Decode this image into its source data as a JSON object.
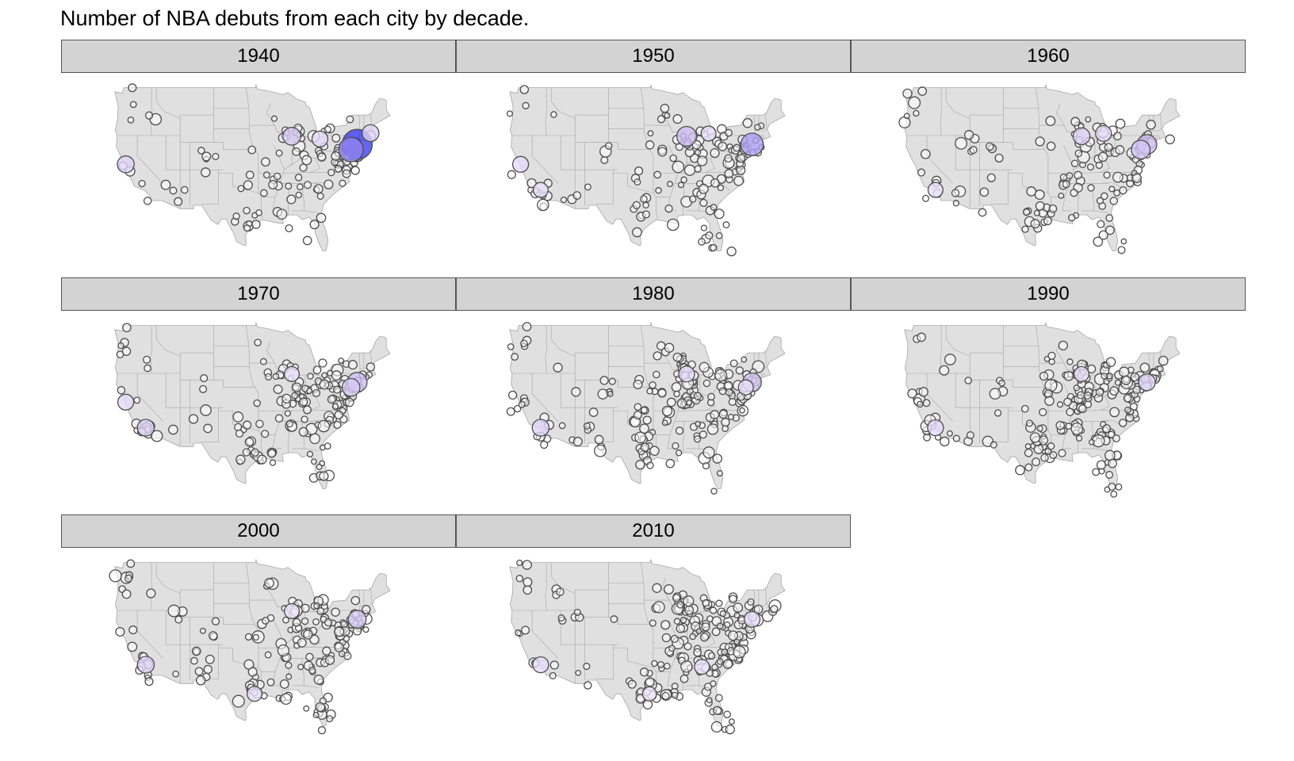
{
  "title": "Number of NBA debuts from each city by decade.",
  "colors": {
    "strip_fill": "#d3d3d3",
    "land_fill": "#e0e0e0",
    "state_border": "#a6a6a6",
    "marker_stroke": "#4d4d4d",
    "marker_fill_low": "#ffffff",
    "marker_fill_mid": "#c9b6f2",
    "marker_fill_high": "#3f3ff0"
  },
  "marker_fill_scale": "white (few debuts) to purple to blue (many debuts)",
  "panels": [
    {
      "label": "1940",
      "hotspots": [
        {
          "lon": -73.9,
          "lat": 40.7,
          "level": 1.0
        },
        {
          "lon": -75.2,
          "lat": 39.95,
          "level": 0.7
        },
        {
          "lon": -87.6,
          "lat": 41.9,
          "level": 0.35
        },
        {
          "lon": -81.7,
          "lat": 41.5,
          "level": 0.25
        },
        {
          "lon": -122.4,
          "lat": 37.8,
          "level": 0.3
        },
        {
          "lon": -71.1,
          "lat": 42.35,
          "level": 0.3
        }
      ]
    },
    {
      "label": "1950",
      "hotspots": [
        {
          "lon": -73.9,
          "lat": 40.7,
          "level": 0.6
        },
        {
          "lon": -87.6,
          "lat": 41.9,
          "level": 0.45
        },
        {
          "lon": -122.4,
          "lat": 37.8,
          "level": 0.25
        },
        {
          "lon": -118.2,
          "lat": 34.05,
          "level": 0.2
        },
        {
          "lon": -83.0,
          "lat": 42.3,
          "level": 0.2
        }
      ]
    },
    {
      "label": "1960",
      "hotspots": [
        {
          "lon": -73.9,
          "lat": 40.7,
          "level": 0.45
        },
        {
          "lon": -75.2,
          "lat": 39.95,
          "level": 0.4
        },
        {
          "lon": -87.6,
          "lat": 41.9,
          "level": 0.3
        },
        {
          "lon": -83.0,
          "lat": 42.3,
          "level": 0.25
        },
        {
          "lon": -118.2,
          "lat": 34.05,
          "level": 0.2
        }
      ]
    },
    {
      "label": "1970",
      "hotspots": [
        {
          "lon": -73.9,
          "lat": 40.7,
          "level": 0.45
        },
        {
          "lon": -75.2,
          "lat": 39.95,
          "level": 0.35
        },
        {
          "lon": -118.2,
          "lat": 34.05,
          "level": 0.3
        },
        {
          "lon": -122.4,
          "lat": 37.8,
          "level": 0.25
        },
        {
          "lon": -87.6,
          "lat": 41.9,
          "level": 0.2
        }
      ]
    },
    {
      "label": "1980",
      "hotspots": [
        {
          "lon": -73.9,
          "lat": 40.7,
          "level": 0.4
        },
        {
          "lon": -118.2,
          "lat": 34.05,
          "level": 0.3
        },
        {
          "lon": -87.6,
          "lat": 41.9,
          "level": 0.25
        },
        {
          "lon": -75.2,
          "lat": 39.95,
          "level": 0.2
        }
      ]
    },
    {
      "label": "1990",
      "hotspots": [
        {
          "lon": -73.9,
          "lat": 40.7,
          "level": 0.3
        },
        {
          "lon": -118.2,
          "lat": 34.05,
          "level": 0.25
        },
        {
          "lon": -87.6,
          "lat": 41.9,
          "level": 0.2
        }
      ]
    },
    {
      "label": "2000",
      "hotspots": [
        {
          "lon": -73.9,
          "lat": 40.7,
          "level": 0.35
        },
        {
          "lon": -118.2,
          "lat": 34.05,
          "level": 0.3
        },
        {
          "lon": -87.6,
          "lat": 41.9,
          "level": 0.2
        },
        {
          "lon": -95.4,
          "lat": 29.8,
          "level": 0.2
        }
      ]
    },
    {
      "label": "2010",
      "hotspots": [
        {
          "lon": -73.9,
          "lat": 40.7,
          "level": 0.25
        },
        {
          "lon": -118.2,
          "lat": 34.05,
          "level": 0.25
        },
        {
          "lon": -84.4,
          "lat": 33.75,
          "level": 0.2
        },
        {
          "lon": -95.4,
          "lat": 29.8,
          "level": 0.15
        }
      ]
    }
  ]
}
